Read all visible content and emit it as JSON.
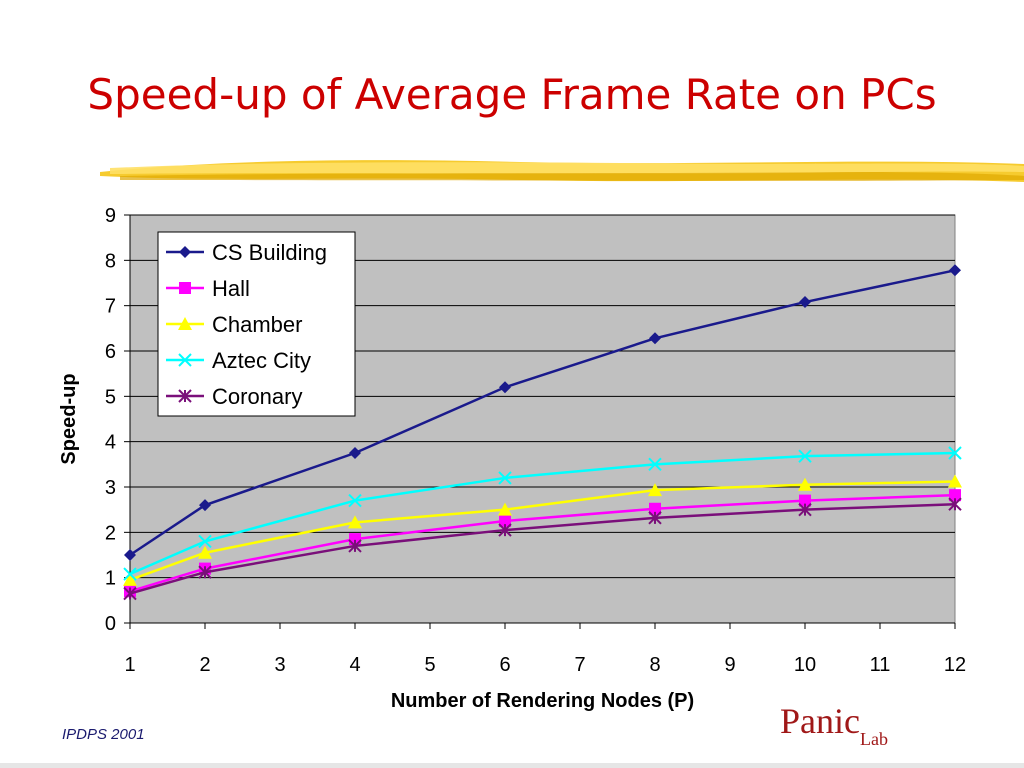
{
  "slide": {
    "title": "Speed-up of Average Frame Rate on PCs",
    "footer_left": "IPDPS 2001",
    "logo_main": "Panic",
    "logo_sub": "Lab",
    "accent_title_color": "#cc0000",
    "brush_color": "#f5c518"
  },
  "chart_data": {
    "type": "line",
    "title": "",
    "xlabel": "Number of Rendering Nodes (P)",
    "ylabel": "Speed-up",
    "x_ticks": [
      1,
      2,
      3,
      4,
      5,
      6,
      7,
      8,
      9,
      10,
      11,
      12
    ],
    "y_ticks": [
      0,
      1,
      2,
      3,
      4,
      5,
      6,
      7,
      8,
      9
    ],
    "xlim": [
      1,
      12
    ],
    "ylim": [
      0,
      9
    ],
    "grid": "horizontal",
    "plot_background": "#c0c0c0",
    "legend_position": "top-left",
    "x": [
      1,
      2,
      4,
      6,
      8,
      10,
      12
    ],
    "series": [
      {
        "name": "CS Building",
        "color": "#1a1a8c",
        "marker": "diamond",
        "values": [
          1.5,
          2.6,
          3.75,
          5.2,
          6.28,
          7.08,
          7.78
        ]
      },
      {
        "name": "Hall",
        "color": "#ff00ff",
        "marker": "square",
        "values": [
          0.7,
          1.2,
          1.85,
          2.25,
          2.52,
          2.7,
          2.82
        ]
      },
      {
        "name": "Chamber",
        "color": "#ffff00",
        "marker": "triangle",
        "values": [
          0.95,
          1.55,
          2.22,
          2.5,
          2.93,
          3.05,
          3.12
        ]
      },
      {
        "name": "Aztec City",
        "color": "#00ffff",
        "marker": "x",
        "values": [
          1.08,
          1.8,
          2.7,
          3.2,
          3.5,
          3.68,
          3.75
        ]
      },
      {
        "name": "Coronary",
        "color": "#7a0f7a",
        "marker": "star",
        "values": [
          0.65,
          1.12,
          1.7,
          2.05,
          2.32,
          2.5,
          2.62
        ]
      }
    ]
  }
}
